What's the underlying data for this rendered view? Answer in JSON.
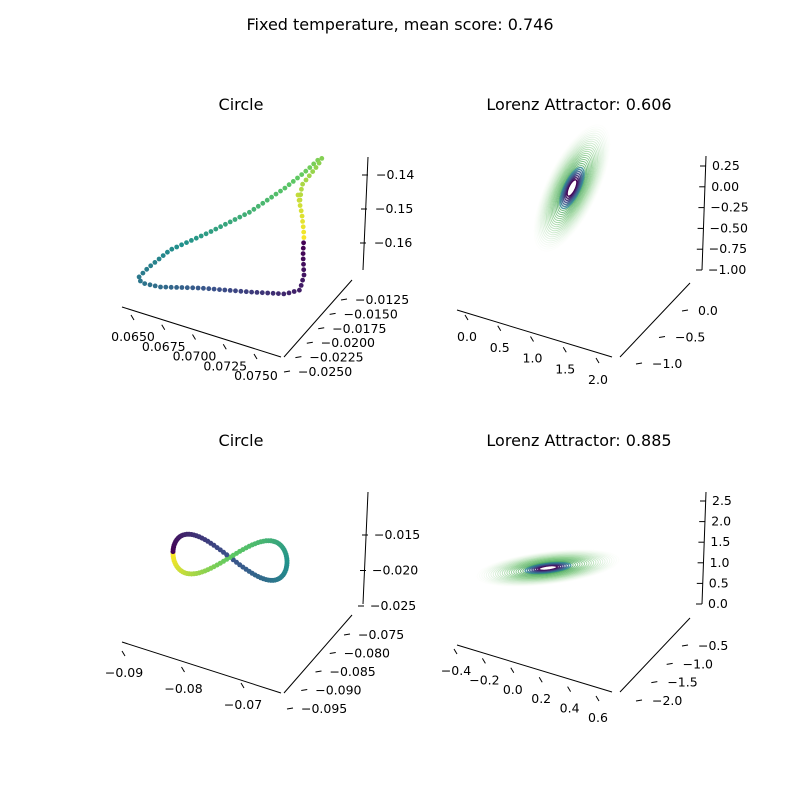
{
  "figure": {
    "suptitle": "Fixed temperature, mean score: 0.746"
  },
  "colors": {
    "viridis": [
      "#440154",
      "#3b528b",
      "#21918c",
      "#5ec962",
      "#fde725"
    ],
    "greens": [
      "#f7fcf5",
      "#74c476",
      "#238b45"
    ]
  },
  "chart_data": [
    {
      "type": "scatter3d",
      "title": "Circle",
      "colormap": "viridis",
      "z_ticks": [
        "−0.14",
        "−0.15",
        "−0.16"
      ],
      "y_ticks": [
        "−0.0125",
        "−0.0150",
        "−0.0175",
        "−0.0200",
        "−0.0225",
        "−0.0250"
      ],
      "x_ticks": [
        "0.0650",
        "0.0675",
        "0.0700",
        "0.0725",
        "0.0750"
      ],
      "zlim": [
        -0.168,
        -0.132
      ],
      "ylim": [
        -0.026,
        -0.011
      ],
      "xlim": [
        0.064,
        0.077
      ],
      "points": "closed loop of 100 points colored by index"
    },
    {
      "type": "line3d",
      "title": "Lorenz Attractor: 0.606",
      "colormap": "greens/viridis",
      "z_ticks": [
        "0.25",
        "0.00",
        "−0.25",
        "−0.50",
        "−0.75",
        "−1.00"
      ],
      "y_ticks": [
        "0.0",
        "−0.5",
        "−1.0"
      ],
      "x_ticks": [
        "0.0",
        "0.5",
        "1.0",
        "1.5",
        "2.0"
      ],
      "zlim": [
        -1.0,
        0.35
      ],
      "ylim": [
        -1.2,
        0.2
      ],
      "xlim": [
        -0.2,
        2.1
      ]
    },
    {
      "type": "scatter3d",
      "title": "Circle",
      "colormap": "viridis",
      "z_ticks": [
        "−0.015",
        "−0.020",
        "−0.025"
      ],
      "y_ticks": [
        "−0.075",
        "−0.080",
        "−0.085",
        "−0.090",
        "−0.095"
      ],
      "x_ticks": [
        "−0.09",
        "−0.08",
        "−0.07"
      ],
      "zlim": [
        -0.026,
        -0.012
      ],
      "ylim": [
        -0.097,
        -0.072
      ],
      "xlim": [
        -0.095,
        -0.064
      ],
      "points": "figure-eight of 100 points colored by index"
    },
    {
      "type": "line3d",
      "title": "Lorenz Attractor: 0.885",
      "colormap": "greens/viridis",
      "z_ticks": [
        "2.5",
        "2.0",
        "1.5",
        "1.0",
        "0.5",
        "0.0"
      ],
      "y_ticks": [
        "−0.5",
        "−1.0",
        "−1.5",
        "−2.0"
      ],
      "x_ticks": [
        "−0.4",
        "−0.2",
        "0.0",
        "0.2",
        "0.4",
        "0.6"
      ],
      "zlim": [
        -0.1,
        2.8
      ],
      "ylim": [
        -2.2,
        -0.3
      ],
      "xlim": [
        -0.5,
        0.65
      ]
    }
  ]
}
